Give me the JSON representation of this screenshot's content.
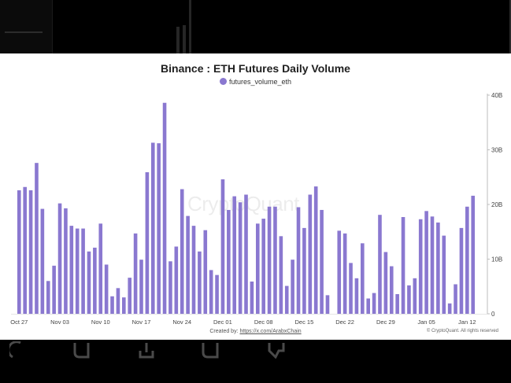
{
  "chart_data": {
    "type": "bar",
    "title": "Binance : ETH Futures Daily Volume",
    "legend": [
      "futures_volume_eth"
    ],
    "legend_position": "top-center",
    "series": [
      {
        "name": "futures_volume_eth",
        "color": "#8a78d0",
        "values": [
          22.6,
          23.2,
          22.6,
          27.6,
          19.2,
          6.0,
          8.8,
          20.2,
          19.3,
          16.1,
          15.6,
          15.6,
          11.4,
          12.1,
          16.5,
          9.0,
          3.2,
          4.7,
          3.0,
          6.6,
          14.7,
          9.9,
          25.9,
          31.3,
          31.2,
          38.6,
          9.6,
          12.3,
          22.8,
          17.9,
          16.1,
          11.4,
          15.3,
          8.0,
          7.1,
          24.6,
          19.0,
          21.5,
          20.4,
          21.8,
          5.9,
          16.5,
          17.4,
          19.6,
          19.6,
          14.2,
          5.1,
          9.9,
          19.5,
          15.7,
          21.8,
          23.3,
          19.0,
          3.4,
          null,
          15.2,
          14.7,
          9.3,
          6.5,
          12.9,
          2.8,
          3.8,
          18.1,
          11.3,
          8.7,
          3.6,
          17.7,
          5.2,
          6.5,
          17.3,
          18.8,
          17.8,
          16.7,
          14.3,
          1.9,
          5.4,
          15.7,
          19.6,
          21.6
        ]
      }
    ],
    "x_start_date": "Oct 27",
    "x_tick_labels": [
      "Oct 27",
      "Nov 03",
      "Nov 10",
      "Nov 17",
      "Nov 24",
      "Dec 01",
      "Dec 08",
      "Dec 15",
      "Dec 22",
      "Dec 29",
      "Jan 05",
      "Jan 12"
    ],
    "y_tick_labels": [
      "0",
      "10B",
      "20B",
      "30B",
      "40B"
    ],
    "ylim": [
      0,
      40
    ],
    "y_unit": "B",
    "y_axis_side": "right",
    "grid": false,
    "watermark": "CryptoQuant"
  },
  "footer": {
    "created_prefix": "Created by:",
    "created_link": "https://x.com/ArabxChain",
    "copyright": "© CryptoQuant. All rights reserved"
  },
  "ui": {
    "action_icons": [
      "reply-icon",
      "bookmark-icon",
      "share-icon",
      "copy-icon",
      "like-icon"
    ]
  }
}
